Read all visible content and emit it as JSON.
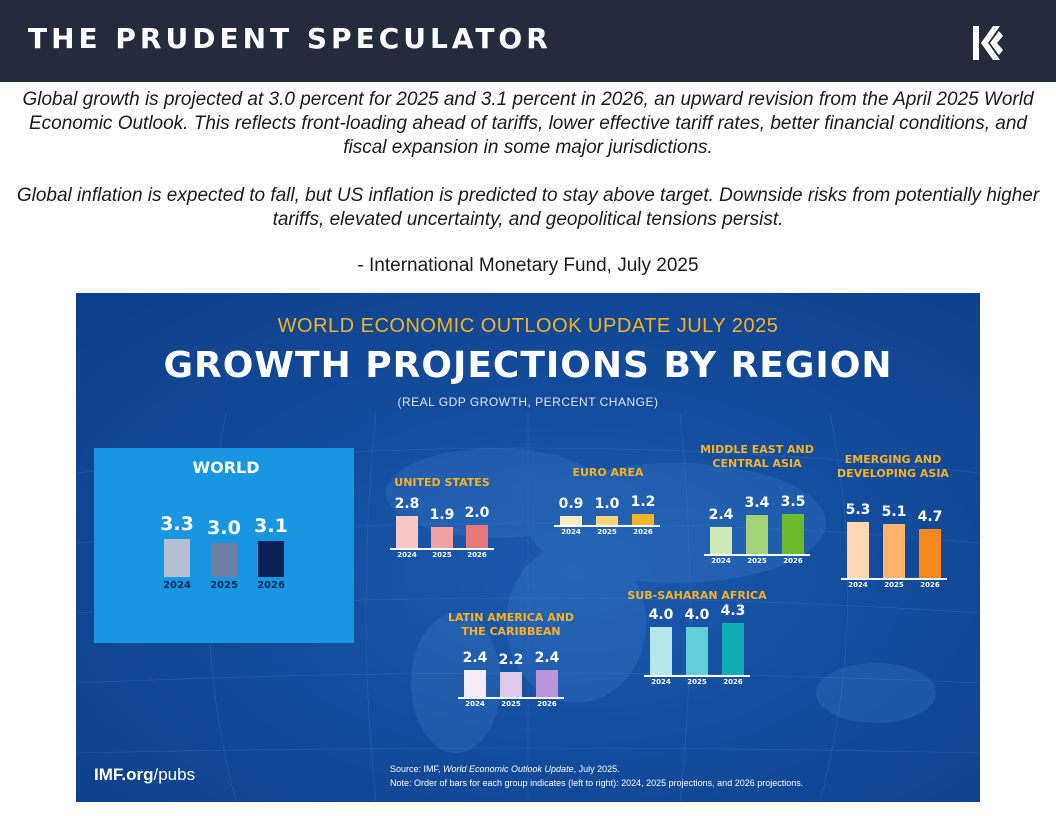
{
  "header": {
    "brand": "THE PRUDENT SPECULATOR",
    "logo_icon": "k-chevrons-logo"
  },
  "quote": {
    "paragraph1": "Global growth is projected at 3.0 percent for 2025 and 3.1 percent in 2026, an upward revision from the April 2025 World Economic Outlook. This reflects front-loading ahead of tariffs, lower effective tariff rates, better financial conditions, and fiscal expansion in some major jurisdictions.",
    "paragraph2": "Global inflation is expected to fall, but US inflation is predicted to stay above target. Downside risks from potentially higher tariffs, elevated uncertainty, and geopolitical tensions persist.",
    "attribution": "- International Monetary Fund, July 2025"
  },
  "infographic": {
    "kicker": "WORLD ECONOMIC OUTLOOK UPDATE JULY 2025",
    "title": "GROWTH PROJECTIONS BY REGION",
    "subtitle": "(REAL GDP GROWTH, PERCENT CHANGE)",
    "imf_brand": "IMF.org",
    "imf_suffix": "/pubs",
    "source_prefix": "Source:  IMF, ",
    "source_title": "World Economic Outlook Update",
    "source_suffix": ", July 2025.",
    "note": "Note:  Order of bars for each group indicates (left to right): 2024, 2025 projections, and 2026 projections."
  },
  "chart_data": {
    "type": "bar",
    "title": "GROWTH PROJECTIONS BY REGION",
    "subtitle": "(REAL GDP GROWTH, PERCENT CHANGE)",
    "categories": [
      "2024",
      "2025",
      "2026"
    ],
    "groups": [
      {
        "key": "world",
        "name": "WORLD",
        "values": [
          3.3,
          3.0,
          3.1
        ],
        "labels": [
          "3.3",
          "3.0",
          "3.1"
        ],
        "colors": [
          "#b4bfd6",
          "#6f7ea3",
          "#0b2058"
        ]
      },
      {
        "key": "us",
        "name": "UNITED STATES",
        "values": [
          2.8,
          1.9,
          2.0
        ],
        "labels": [
          "2.8",
          "1.9",
          "2.0"
        ],
        "colors": [
          "#f8c8c8",
          "#f1a1a1",
          "#e8787a"
        ]
      },
      {
        "key": "euro",
        "name": "EURO AREA",
        "values": [
          0.9,
          1.0,
          1.2
        ],
        "labels": [
          "0.9",
          "1.0",
          "1.2"
        ],
        "colors": [
          "#fbecc4",
          "#f7d37b",
          "#f2b52c"
        ]
      },
      {
        "key": "mec",
        "name": "MIDDLE EAST AND CENTRAL ASIA",
        "values": [
          2.4,
          3.4,
          3.5
        ],
        "labels": [
          "2.4",
          "3.4",
          "3.5"
        ],
        "colors": [
          "#cfeab4",
          "#a2d477",
          "#6cbb2c"
        ]
      },
      {
        "key": "eda",
        "name": "EMERGING AND DEVELOPING ASIA",
        "values": [
          5.3,
          5.1,
          4.7
        ],
        "labels": [
          "5.3",
          "5.1",
          "4.7"
        ],
        "colors": [
          "#fdd7b1",
          "#fbb36c",
          "#f7881d"
        ]
      },
      {
        "key": "lac",
        "name": "LATIN AMERICA AND THE CARIBBEAN",
        "values": [
          2.4,
          2.2,
          2.4
        ],
        "labels": [
          "2.4",
          "2.2",
          "2.4"
        ],
        "colors": [
          "#f3ecf7",
          "#dcc9ea",
          "#b895d6"
        ]
      },
      {
        "key": "ssa",
        "name": "SUB-SAHARAN AFRICA",
        "values": [
          4.0,
          4.0,
          4.3
        ],
        "labels": [
          "4.0",
          "4.0",
          "4.3"
        ],
        "colors": [
          "#b4e8ea",
          "#60cfd6",
          "#10adb6"
        ]
      }
    ]
  }
}
